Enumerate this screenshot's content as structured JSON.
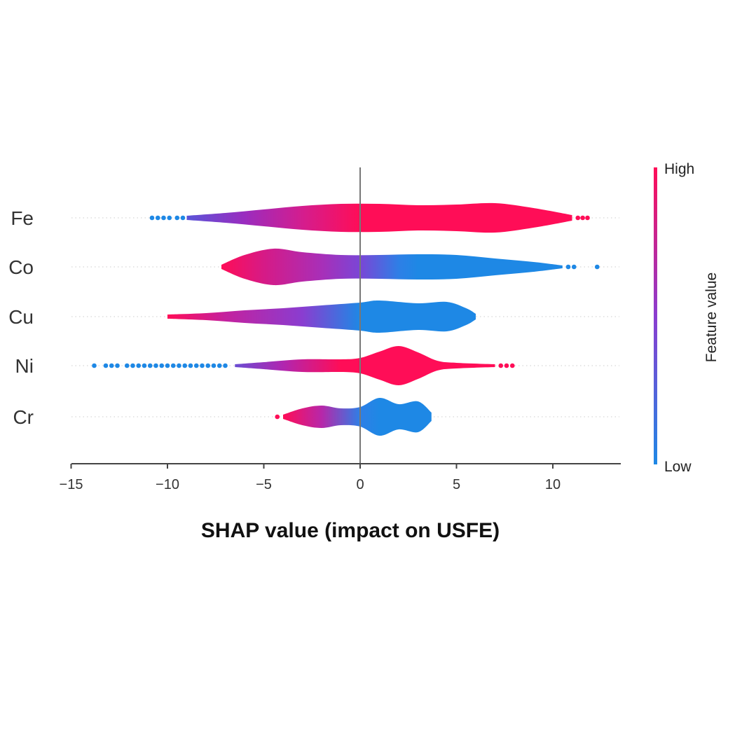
{
  "chart_data": {
    "type": "violin",
    "xlabel": "SHAP value (impact on USFE)",
    "xlim": [
      -15,
      13.5
    ],
    "xticks": [
      -15,
      -10,
      -5,
      0,
      5,
      10
    ],
    "xtick_labels": [
      "−15",
      "−10",
      "−5",
      "0",
      "5",
      "10"
    ],
    "grid": false,
    "colorbar": {
      "label": "Feature value",
      "high_label": "High",
      "low_label": "Low",
      "high_color": "#ff0d57",
      "low_color": "#1e88e5"
    },
    "features": [
      {
        "name": "Fe",
        "range": [
          -9,
          11
        ],
        "profile": [
          [
            -9,
            3
          ],
          [
            -7,
            7
          ],
          [
            -5,
            12
          ],
          [
            -3,
            17
          ],
          [
            -1,
            20
          ],
          [
            1,
            20
          ],
          [
            3,
            18
          ],
          [
            5,
            19
          ],
          [
            7,
            21
          ],
          [
            9,
            14
          ],
          [
            11,
            4
          ]
        ],
        "colors": [
          [
            -9,
            "#5a55d8"
          ],
          [
            -6,
            "#9a2cbf"
          ],
          [
            -3,
            "#d41d8e"
          ],
          [
            0,
            "#ff0d57"
          ],
          [
            11,
            "#ff0d57"
          ]
        ],
        "outliers_low": [
          -10.8,
          -10.5,
          -10.2,
          -9.9,
          -9.5,
          -9.2
        ],
        "outliers_high": [
          11.3,
          11.55,
          11.8
        ],
        "outliers_low_color": "#1e88e5",
        "outliers_high_color": "#ff0d57"
      },
      {
        "name": "Co",
        "range": [
          -7.2,
          10.5
        ],
        "profile": [
          [
            -7.2,
            3
          ],
          [
            -6,
            17
          ],
          [
            -4.5,
            26
          ],
          [
            -3,
            21
          ],
          [
            -1,
            17
          ],
          [
            1,
            17
          ],
          [
            3,
            18
          ],
          [
            5,
            17
          ],
          [
            7,
            12
          ],
          [
            9,
            7
          ],
          [
            10.5,
            2
          ]
        ],
        "colors": [
          [
            -7.2,
            "#ff0d57"
          ],
          [
            -5,
            "#d61a86"
          ],
          [
            -2,
            "#a82fb8"
          ],
          [
            0,
            "#7a46d6"
          ],
          [
            2,
            "#2e7fe6"
          ],
          [
            3,
            "#1e88e5"
          ],
          [
            10.5,
            "#1e88e5"
          ]
        ],
        "outliers_low": [],
        "outliers_high": [
          10.8,
          11.1,
          12.3
        ],
        "outliers_low_color": "#ff0d57",
        "outliers_high_color": "#1e88e5"
      },
      {
        "name": "Cu",
        "range": [
          -10,
          6
        ],
        "profile": [
          [
            -10,
            3
          ],
          [
            -8,
            5
          ],
          [
            -6,
            9
          ],
          [
            -4,
            12
          ],
          [
            -2,
            16
          ],
          [
            0,
            20
          ],
          [
            1,
            23
          ],
          [
            3,
            19
          ],
          [
            4.5,
            21
          ],
          [
            5.5,
            12
          ],
          [
            6,
            4
          ]
        ],
        "colors": [
          [
            -10,
            "#ff0d57"
          ],
          [
            -7,
            "#c4219e"
          ],
          [
            -3,
            "#8a3dd0"
          ],
          [
            0,
            "#1e88e5"
          ],
          [
            6,
            "#1e88e5"
          ]
        ],
        "outliers_low": [],
        "outliers_high": [],
        "outliers_low_color": "#ff0d57",
        "outliers_high_color": "#1e88e5"
      },
      {
        "name": "Ni",
        "range": [
          -6.5,
          7
        ],
        "profile": [
          [
            -6.5,
            2
          ],
          [
            -5,
            5
          ],
          [
            -3,
            9
          ],
          [
            -1,
            9
          ],
          [
            0,
            11
          ],
          [
            1,
            20
          ],
          [
            2,
            28
          ],
          [
            3,
            19
          ],
          [
            4,
            7
          ],
          [
            5,
            4
          ],
          [
            7,
            2
          ]
        ],
        "colors": [
          [
            -6.5,
            "#6a4dd2"
          ],
          [
            -4,
            "#b026b0"
          ],
          [
            -1,
            "#ff0d57"
          ],
          [
            7,
            "#ff0d57"
          ]
        ],
        "outliers_low": [
          -13.8,
          -13.2,
          -12.9,
          -12.6,
          -12.1,
          -11.8,
          -11.5,
          -11.2,
          -10.9,
          -10.6,
          -10.3,
          -10.0,
          -9.7,
          -9.4,
          -9.1,
          -8.8,
          -8.5,
          -8.2,
          -7.9,
          -7.6,
          -7.3,
          -7.0
        ],
        "outliers_high": [
          7.3,
          7.6,
          7.9
        ],
        "outliers_low_color": "#1e88e5",
        "outliers_high_color": "#ff0d57"
      },
      {
        "name": "Cr",
        "range": [
          -4,
          3.7
        ],
        "profile": [
          [
            -4,
            3
          ],
          [
            -3,
            12
          ],
          [
            -2,
            16
          ],
          [
            -1,
            12
          ],
          [
            0,
            14
          ],
          [
            1,
            27
          ],
          [
            2,
            18
          ],
          [
            3,
            22
          ],
          [
            3.7,
            6
          ]
        ],
        "colors": [
          [
            -4,
            "#ff0d57"
          ],
          [
            -2,
            "#b727a9"
          ],
          [
            0,
            "#2e7fe6"
          ],
          [
            1,
            "#1e88e5"
          ],
          [
            3.7,
            "#1e88e5"
          ]
        ],
        "outliers_low": [
          -4.3
        ],
        "outliers_high": [],
        "outliers_low_color": "#ff0d57",
        "outliers_high_color": "#1e88e5"
      }
    ]
  }
}
